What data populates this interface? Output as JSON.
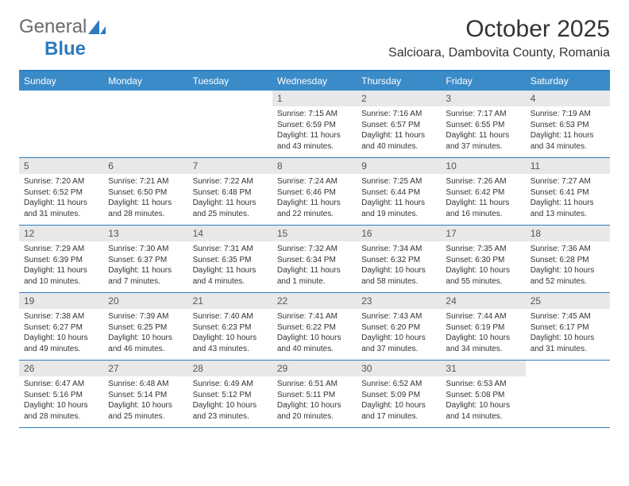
{
  "logo": {
    "text1": "General",
    "text2": "Blue"
  },
  "title": "October 2025",
  "location": "Salcioara, Dambovita County, Romania",
  "colors": {
    "header_bg": "#3b8bc9",
    "header_border": "#2f7bbf",
    "daynum_bg": "#e8e8e8",
    "text": "#333333"
  },
  "weekdays": [
    "Sunday",
    "Monday",
    "Tuesday",
    "Wednesday",
    "Thursday",
    "Friday",
    "Saturday"
  ],
  "weeks": [
    [
      {
        "n": "",
        "sr": "",
        "ss": "",
        "dl": ""
      },
      {
        "n": "",
        "sr": "",
        "ss": "",
        "dl": ""
      },
      {
        "n": "",
        "sr": "",
        "ss": "",
        "dl": ""
      },
      {
        "n": "1",
        "sr": "Sunrise: 7:15 AM",
        "ss": "Sunset: 6:59 PM",
        "dl": "Daylight: 11 hours and 43 minutes."
      },
      {
        "n": "2",
        "sr": "Sunrise: 7:16 AM",
        "ss": "Sunset: 6:57 PM",
        "dl": "Daylight: 11 hours and 40 minutes."
      },
      {
        "n": "3",
        "sr": "Sunrise: 7:17 AM",
        "ss": "Sunset: 6:55 PM",
        "dl": "Daylight: 11 hours and 37 minutes."
      },
      {
        "n": "4",
        "sr": "Sunrise: 7:19 AM",
        "ss": "Sunset: 6:53 PM",
        "dl": "Daylight: 11 hours and 34 minutes."
      }
    ],
    [
      {
        "n": "5",
        "sr": "Sunrise: 7:20 AM",
        "ss": "Sunset: 6:52 PM",
        "dl": "Daylight: 11 hours and 31 minutes."
      },
      {
        "n": "6",
        "sr": "Sunrise: 7:21 AM",
        "ss": "Sunset: 6:50 PM",
        "dl": "Daylight: 11 hours and 28 minutes."
      },
      {
        "n": "7",
        "sr": "Sunrise: 7:22 AM",
        "ss": "Sunset: 6:48 PM",
        "dl": "Daylight: 11 hours and 25 minutes."
      },
      {
        "n": "8",
        "sr": "Sunrise: 7:24 AM",
        "ss": "Sunset: 6:46 PM",
        "dl": "Daylight: 11 hours and 22 minutes."
      },
      {
        "n": "9",
        "sr": "Sunrise: 7:25 AM",
        "ss": "Sunset: 6:44 PM",
        "dl": "Daylight: 11 hours and 19 minutes."
      },
      {
        "n": "10",
        "sr": "Sunrise: 7:26 AM",
        "ss": "Sunset: 6:42 PM",
        "dl": "Daylight: 11 hours and 16 minutes."
      },
      {
        "n": "11",
        "sr": "Sunrise: 7:27 AM",
        "ss": "Sunset: 6:41 PM",
        "dl": "Daylight: 11 hours and 13 minutes."
      }
    ],
    [
      {
        "n": "12",
        "sr": "Sunrise: 7:29 AM",
        "ss": "Sunset: 6:39 PM",
        "dl": "Daylight: 11 hours and 10 minutes."
      },
      {
        "n": "13",
        "sr": "Sunrise: 7:30 AM",
        "ss": "Sunset: 6:37 PM",
        "dl": "Daylight: 11 hours and 7 minutes."
      },
      {
        "n": "14",
        "sr": "Sunrise: 7:31 AM",
        "ss": "Sunset: 6:35 PM",
        "dl": "Daylight: 11 hours and 4 minutes."
      },
      {
        "n": "15",
        "sr": "Sunrise: 7:32 AM",
        "ss": "Sunset: 6:34 PM",
        "dl": "Daylight: 11 hours and 1 minute."
      },
      {
        "n": "16",
        "sr": "Sunrise: 7:34 AM",
        "ss": "Sunset: 6:32 PM",
        "dl": "Daylight: 10 hours and 58 minutes."
      },
      {
        "n": "17",
        "sr": "Sunrise: 7:35 AM",
        "ss": "Sunset: 6:30 PM",
        "dl": "Daylight: 10 hours and 55 minutes."
      },
      {
        "n": "18",
        "sr": "Sunrise: 7:36 AM",
        "ss": "Sunset: 6:28 PM",
        "dl": "Daylight: 10 hours and 52 minutes."
      }
    ],
    [
      {
        "n": "19",
        "sr": "Sunrise: 7:38 AM",
        "ss": "Sunset: 6:27 PM",
        "dl": "Daylight: 10 hours and 49 minutes."
      },
      {
        "n": "20",
        "sr": "Sunrise: 7:39 AM",
        "ss": "Sunset: 6:25 PM",
        "dl": "Daylight: 10 hours and 46 minutes."
      },
      {
        "n": "21",
        "sr": "Sunrise: 7:40 AM",
        "ss": "Sunset: 6:23 PM",
        "dl": "Daylight: 10 hours and 43 minutes."
      },
      {
        "n": "22",
        "sr": "Sunrise: 7:41 AM",
        "ss": "Sunset: 6:22 PM",
        "dl": "Daylight: 10 hours and 40 minutes."
      },
      {
        "n": "23",
        "sr": "Sunrise: 7:43 AM",
        "ss": "Sunset: 6:20 PM",
        "dl": "Daylight: 10 hours and 37 minutes."
      },
      {
        "n": "24",
        "sr": "Sunrise: 7:44 AM",
        "ss": "Sunset: 6:19 PM",
        "dl": "Daylight: 10 hours and 34 minutes."
      },
      {
        "n": "25",
        "sr": "Sunrise: 7:45 AM",
        "ss": "Sunset: 6:17 PM",
        "dl": "Daylight: 10 hours and 31 minutes."
      }
    ],
    [
      {
        "n": "26",
        "sr": "Sunrise: 6:47 AM",
        "ss": "Sunset: 5:16 PM",
        "dl": "Daylight: 10 hours and 28 minutes."
      },
      {
        "n": "27",
        "sr": "Sunrise: 6:48 AM",
        "ss": "Sunset: 5:14 PM",
        "dl": "Daylight: 10 hours and 25 minutes."
      },
      {
        "n": "28",
        "sr": "Sunrise: 6:49 AM",
        "ss": "Sunset: 5:12 PM",
        "dl": "Daylight: 10 hours and 23 minutes."
      },
      {
        "n": "29",
        "sr": "Sunrise: 6:51 AM",
        "ss": "Sunset: 5:11 PM",
        "dl": "Daylight: 10 hours and 20 minutes."
      },
      {
        "n": "30",
        "sr": "Sunrise: 6:52 AM",
        "ss": "Sunset: 5:09 PM",
        "dl": "Daylight: 10 hours and 17 minutes."
      },
      {
        "n": "31",
        "sr": "Sunrise: 6:53 AM",
        "ss": "Sunset: 5:08 PM",
        "dl": "Daylight: 10 hours and 14 minutes."
      },
      {
        "n": "",
        "sr": "",
        "ss": "",
        "dl": ""
      }
    ]
  ]
}
